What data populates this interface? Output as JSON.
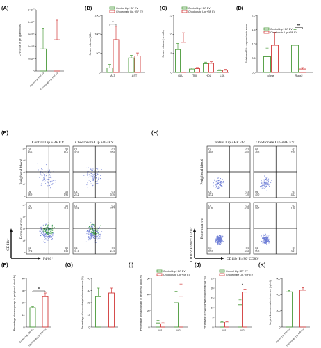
{
  "colors": {
    "green": "#4a9a3a",
    "red": "#d23a3a",
    "axis": "#111111",
    "flowDense": "#2f9c3a",
    "flowLight": "#6f7fd6"
  },
  "panel_letters": [
    "(A)",
    "(B)",
    "(C)",
    "(D)",
    "(E)",
    "(F)",
    "(G)",
    "(H)",
    "(I)",
    "(J)",
    "(K)"
  ],
  "legend": {
    "green": "Control Lip.+BF EV",
    "red": "Chodronate Lip.+BF EV"
  },
  "chart_data": [
    {
      "id": "A",
      "type": "bar",
      "ylabel": "CFU of BF in per gram feces",
      "ylim": [
        0,
        10000000
      ],
      "yticks": [
        "0",
        "2×10⁶",
        "4×10⁶",
        "6×10⁶",
        "8×10⁶",
        "1×10⁷"
      ],
      "categories": [
        "Control Lip.+BF EV",
        "Chodronate Lip.+BF EV"
      ],
      "values": [
        3600000,
        5100000
      ],
      "errors": [
        3400000,
        3200000
      ]
    },
    {
      "id": "B",
      "type": "bar",
      "ylabel": "Serum indexes (U/L)",
      "ylim": [
        0,
        1500
      ],
      "yticks": [
        "0",
        "500",
        "1000",
        "1500"
      ],
      "categories": [
        "ALT",
        "AST"
      ],
      "series": [
        {
          "name": "Control Lip.+BF EV",
          "values": [
            120,
            380
          ],
          "errors": [
            90,
            70
          ]
        },
        {
          "name": "Chodronate Lip.+BF EV",
          "values": [
            860,
            430
          ],
          "errors": [
            350,
            80
          ]
        }
      ],
      "annotation": "*"
    },
    {
      "id": "C",
      "type": "bar",
      "ylabel": "Serum indexes (mmol/L)",
      "ylim": [
        0,
        15
      ],
      "yticks": [
        "0",
        "5",
        "10",
        "15"
      ],
      "categories": [
        "GLU",
        "TRI",
        "HDL",
        "LDL"
      ],
      "series": [
        {
          "name": "Control Lip.+BF EV",
          "values": [
            6.0,
            0.9,
            2.3,
            0.5
          ],
          "errors": [
            1.6,
            0.3,
            0.4,
            0.2
          ]
        },
        {
          "name": "Chodronate Lip.+BF EV",
          "values": [
            7.9,
            1.0,
            2.4,
            0.6
          ],
          "errors": [
            2.5,
            0.3,
            0.4,
            0.2
          ]
        }
      ]
    },
    {
      "id": "D",
      "type": "bar",
      "ylabel": "Relative mRNA expression in aorta",
      "ylim": [
        0,
        2.0
      ],
      "yticks": [
        "0.0",
        "0.5",
        "1.0",
        "1.5",
        "2.0"
      ],
      "categories": [
        "c5me",
        "Runx2"
      ],
      "series": [
        {
          "name": "Control Lip.+BF EV",
          "values": [
            0.55,
            0.95
          ],
          "errors": [
            0.3,
            0.55
          ]
        },
        {
          "name": "Chodronate Lip.+BF EV",
          "values": [
            0.95,
            0.12
          ],
          "errors": [
            0.45,
            0.05
          ]
        }
      ],
      "annotation": "**"
    },
    {
      "id": "F",
      "type": "bar",
      "ylabel": "Percentage of macrophage in peripheral blood (%)",
      "ylim": [
        0,
        40
      ],
      "yticks": [
        "0",
        "10",
        "20",
        "30",
        "40"
      ],
      "categories": [
        "Control Lip.+BF EV",
        "Chodronate Lip.+BF EV"
      ],
      "values": [
        16,
        25
      ],
      "errors": [
        1,
        3
      ],
      "annotation": "*"
    },
    {
      "id": "G",
      "type": "bar",
      "ylabel": "Percentage of macrophage in bone marrow (%)",
      "ylim": [
        0,
        40
      ],
      "yticks": [
        "0",
        "10",
        "20",
        "30",
        "40"
      ],
      "categories": [
        "",
        ""
      ],
      "values": [
        25,
        28
      ],
      "errors": [
        7,
        4
      ]
    },
    {
      "id": "I",
      "type": "bar",
      "ylabel": "Percentage of macrophage in peripheral blood (%)",
      "ylim": [
        0,
        60
      ],
      "yticks": [
        "0",
        "20",
        "40",
        "60"
      ],
      "categories": [
        "M1",
        "M2"
      ],
      "series": [
        {
          "name": "Control Lip.+BF EV",
          "values": [
            5,
            30
          ],
          "errors": [
            3,
            14
          ]
        },
        {
          "name": "Chodronate Lip.+BF EV",
          "values": [
            4,
            38
          ],
          "errors": [
            2,
            15
          ]
        }
      ]
    },
    {
      "id": "J",
      "type": "bar",
      "ylabel": "Percentage of macrophage in bone marrow (%)",
      "ylim": [
        0,
        25
      ],
      "yticks": [
        "0",
        "5",
        "10",
        "15",
        "20",
        "25"
      ],
      "categories": [
        "M1",
        "M2"
      ],
      "series": [
        {
          "name": "Control Lip.+BF EV",
          "values": [
            2.5,
            11.5
          ],
          "errors": [
            0.5,
            2.5
          ]
        },
        {
          "name": "Chodronate Lip.+BF EV",
          "values": [
            2.6,
            18
          ],
          "errors": [
            0.4,
            1.5
          ]
        }
      ],
      "annotation": "*"
    },
    {
      "id": "K",
      "type": "bar",
      "ylabel": "Serpine1 concentration in serum (ng/ml)",
      "ylim": [
        0,
        600
      ],
      "yticks": [
        "0",
        "200",
        "400",
        "600"
      ],
      "categories": [
        "Control Lip.+BF EV",
        "Chodronate Lip.+BF EV"
      ],
      "values": [
        435,
        455
      ],
      "errors": [
        15,
        30
      ]
    }
  ],
  "flow_E": {
    "columns": [
      "Control Lip.+BF EV",
      "Chodronate Lip.+BF EV"
    ],
    "rows": [
      "Peripheral blood",
      "Bone marrow"
    ],
    "xlabel": "F4/80⁺",
    "ylabel": "CD11b⁺",
    "yticks": [
      "10⁴",
      "10³",
      "10²",
      "10¹",
      "0"
    ],
    "plots": [
      {
        "q1": [
          "Q1",
          "43.6"
        ],
        "q2": [
          "Q2",
          "15.6"
        ],
        "q3": [
          "Q3",
          "1.91"
        ],
        "q4": [
          "Q4",
          "38.9"
        ]
      },
      {
        "q1": [
          "Q1",
          "37.0"
        ],
        "q2": [
          "Q2",
          "37.2"
        ],
        "q3": [
          "Q3",
          "0.56"
        ],
        "q4": [
          "Q4",
          "25.2"
        ]
      },
      {
        "q1": [
          "Q1",
          "56.1"
        ],
        "q2": [
          "Q2",
          "25.3"
        ],
        "q3": [
          "Q3",
          "1.32"
        ],
        "q4": [
          "Q4",
          "17.2"
        ]
      },
      {
        "q1": [
          "Q1",
          "38.8"
        ],
        "q2": [
          "Q2",
          "27.7"
        ],
        "q3": [
          "Q3",
          "2.43"
        ],
        "q4": [
          "Q4",
          "31.1"
        ]
      }
    ]
  },
  "flow_H": {
    "columns": [
      "Control Lip.+BF EV",
      "Chodronate Lip.+BF EV"
    ],
    "rows": [
      "Peripheral blood",
      "Bone marrow"
    ],
    "xlabel": "CD11b⁺F4/80⁺CD86⁺",
    "ylabel": "CD11b⁺F4/80⁺CD206⁺",
    "plots": [
      {
        "q1": [
          "Q1",
          "40.8"
        ],
        "q2": [
          "Q2",
          "4.80"
        ],
        "q3": [
          "Q3",
          "7.20"
        ],
        "q4": [
          "Q4",
          "47.2"
        ]
      },
      {
        "q1": [
          "Q1",
          "48.8"
        ],
        "q2": [
          "Q2",
          "7.06"
        ],
        "q3": [
          "Q3",
          "4.12"
        ],
        "q4": [
          "Q4",
          "40.0"
        ]
      },
      {
        "q1": [
          "Q1",
          "8.29"
        ],
        "q2": [
          "Q2",
          "0.58"
        ],
        "q3": [
          "Q3",
          "3.62"
        ],
        "q4": [
          "Q4",
          "87.5"
        ]
      },
      {
        "q1": [
          "Q1",
          "19.7"
        ],
        "q2": [
          "Q2",
          "1.26"
        ],
        "q3": [
          "Q3",
          "3.21"
        ],
        "q4": [
          "Q4",
          "75.8"
        ]
      }
    ]
  }
}
